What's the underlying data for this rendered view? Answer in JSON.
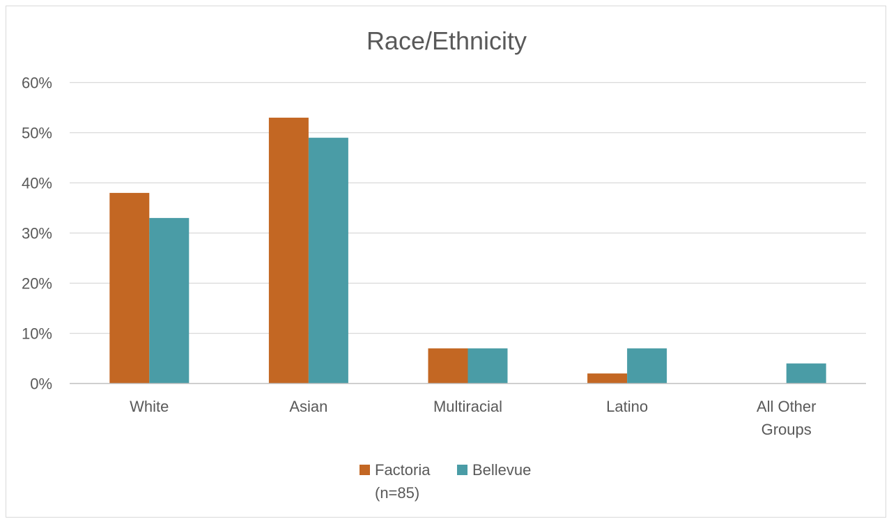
{
  "chart_data": {
    "type": "bar",
    "title": "Race/Ethnicity",
    "categories": [
      [
        "White"
      ],
      [
        "Asian"
      ],
      [
        "Multiracial"
      ],
      [
        "Latino"
      ],
      [
        "All Other",
        "Groups"
      ]
    ],
    "series": [
      {
        "name": [
          "Factoria",
          "(n=85)"
        ],
        "color": "#C36723",
        "values": [
          38,
          53,
          7,
          2,
          0
        ]
      },
      {
        "name": [
          "Bellevue"
        ],
        "color": "#4A9CA6",
        "values": [
          33,
          49,
          7,
          7,
          4
        ]
      }
    ],
    "y_ticks": [
      "0%",
      "10%",
      "20%",
      "30%",
      "40%",
      "50%",
      "60%"
    ],
    "ylim": [
      0,
      60
    ],
    "y_unit": "%",
    "grid": true,
    "legend": "bottom"
  }
}
